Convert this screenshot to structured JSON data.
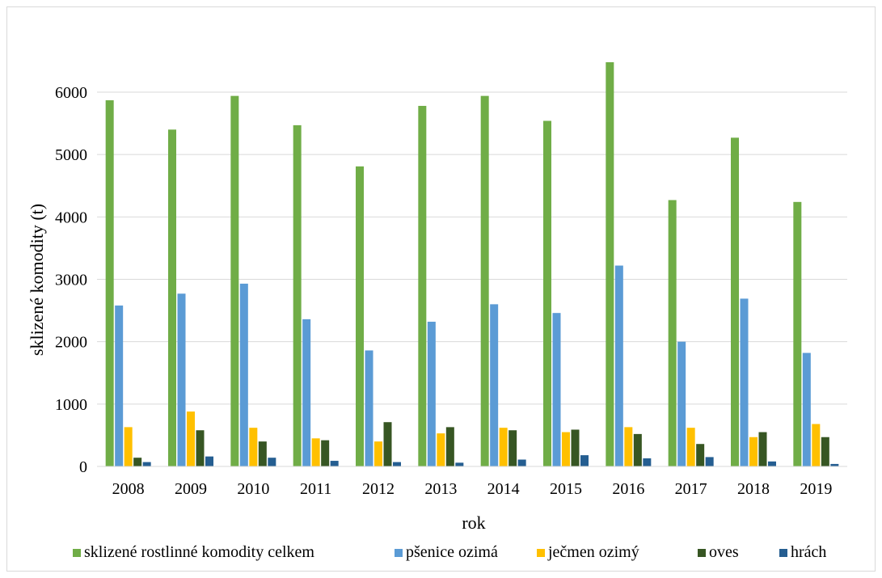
{
  "chart_data": {
    "type": "bar",
    "title": "",
    "xlabel": "rok",
    "ylabel": "sklizené komodity (t)",
    "ylim": [
      0,
      7000
    ],
    "yticks": [
      0,
      1000,
      2000,
      3000,
      4000,
      5000,
      6000
    ],
    "grid": true,
    "legend_position": "bottom",
    "categories": [
      "2008",
      "2009",
      "2010",
      "2011",
      "2012",
      "2013",
      "2014",
      "2015",
      "2016",
      "2017",
      "2018",
      "2019"
    ],
    "series": [
      {
        "name": "sklizené rostlinné komodity celkem",
        "color": "#70AD47",
        "values": [
          5870,
          5400,
          5940,
          5470,
          4810,
          5780,
          5940,
          5540,
          6480,
          4270,
          5270,
          4240
        ]
      },
      {
        "name": "pšenice ozimá",
        "color": "#5B9BD5",
        "values": [
          2580,
          2770,
          2930,
          2360,
          1860,
          2320,
          2600,
          2460,
          3220,
          2000,
          2690,
          1820
        ]
      },
      {
        "name": "ječmen ozimý",
        "color": "#FFC000",
        "values": [
          630,
          880,
          620,
          450,
          400,
          530,
          620,
          550,
          630,
          620,
          470,
          680
        ]
      },
      {
        "name": "oves",
        "color": "#375623",
        "values": [
          140,
          580,
          400,
          420,
          710,
          630,
          580,
          590,
          520,
          360,
          550,
          470
        ]
      },
      {
        "name": "hrách",
        "color": "#255E91",
        "values": [
          70,
          160,
          140,
          90,
          70,
          60,
          110,
          180,
          130,
          150,
          80,
          40
        ]
      }
    ]
  }
}
